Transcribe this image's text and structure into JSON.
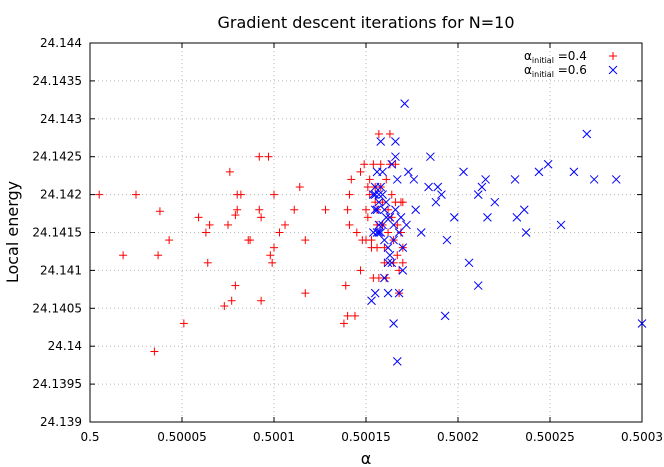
{
  "chart_data": {
    "type": "scatter",
    "title": "Gradient descent iterations for N=10",
    "xlabel": "α",
    "ylabel": "Local energy",
    "xlim": [
      0.5,
      0.5003
    ],
    "ylim": [
      24.139,
      24.144
    ],
    "x_ticks": [
      0.5,
      0.50005,
      0.5001,
      0.50015,
      0.5002,
      0.50025,
      0.5003
    ],
    "x_tick_labels": [
      "0.5",
      "0.50005",
      "0.5001",
      "0.50015",
      "0.5002",
      "0.50025",
      "0.5003"
    ],
    "y_ticks": [
      24.139,
      24.1395,
      24.14,
      24.1405,
      24.141,
      24.1415,
      24.142,
      24.1425,
      24.143,
      24.1435,
      24.144
    ],
    "y_tick_labels": [
      "24.139",
      "24.1395",
      "24.14",
      "24.1405",
      "24.141",
      "24.1415",
      "24.142",
      "24.1425",
      "24.143",
      "24.1435",
      "24.144"
    ],
    "grid": true,
    "legend_position": "top-right",
    "series": [
      {
        "label_main": "α",
        "label_sub": "initial",
        "label_rest": "=0.4",
        "marker": "plus",
        "color": "#ff0000",
        "points": [
          [
            0.500005,
            24.142
          ],
          [
            0.500025,
            24.142
          ],
          [
            0.500018,
            24.1412
          ],
          [
            0.500037,
            24.1412
          ],
          [
            0.500038,
            24.14178
          ],
          [
            0.500035,
            24.13993
          ],
          [
            0.500043,
            24.1414
          ],
          [
            0.500051,
            24.1403
          ],
          [
            0.500059,
            24.1417
          ],
          [
            0.500063,
            24.1415
          ],
          [
            0.500064,
            24.1411
          ],
          [
            0.500065,
            24.1416
          ],
          [
            0.500073,
            24.14053
          ],
          [
            0.500075,
            24.1416
          ],
          [
            0.500076,
            24.1423
          ],
          [
            0.500077,
            24.1406
          ],
          [
            0.500079,
            24.1408
          ],
          [
            0.500079,
            24.14173
          ],
          [
            0.50008,
            24.1418
          ],
          [
            0.50008,
            24.142
          ],
          [
            0.500082,
            24.142
          ],
          [
            0.500086,
            24.1414
          ],
          [
            0.500087,
            24.1414
          ],
          [
            0.500092,
            24.1418
          ],
          [
            0.500092,
            24.1425
          ],
          [
            0.500093,
            24.1417
          ],
          [
            0.500093,
            24.1406
          ],
          [
            0.500097,
            24.1425
          ],
          [
            0.500098,
            24.1412
          ],
          [
            0.500099,
            24.1411
          ],
          [
            0.5001,
            24.142
          ],
          [
            0.5001,
            24.1413
          ],
          [
            0.500103,
            24.1415
          ],
          [
            0.500106,
            24.1416
          ],
          [
            0.500111,
            24.1418
          ],
          [
            0.500114,
            24.1421
          ],
          [
            0.500117,
            24.1407
          ],
          [
            0.500117,
            24.1414
          ],
          [
            0.500128,
            24.1418
          ],
          [
            0.500138,
            24.1403
          ],
          [
            0.500139,
            24.1408
          ],
          [
            0.50014,
            24.1404
          ],
          [
            0.50014,
            24.1418
          ],
          [
            0.500141,
            24.1416
          ],
          [
            0.500141,
            24.142
          ],
          [
            0.500142,
            24.1422
          ],
          [
            0.500144,
            24.1404
          ],
          [
            0.500145,
            24.1415
          ],
          [
            0.500147,
            24.1423
          ],
          [
            0.500147,
            24.141
          ],
          [
            0.500148,
            24.1414
          ],
          [
            0.500149,
            24.1424
          ],
          [
            0.50015,
            24.1414
          ],
          [
            0.50015,
            24.1418
          ],
          [
            0.500151,
            24.1421
          ],
          [
            0.500151,
            24.1417
          ],
          [
            0.500152,
            24.1422
          ],
          [
            0.500152,
            24.142
          ],
          [
            0.500153,
            24.1414
          ],
          [
            0.500153,
            24.1413
          ],
          [
            0.500154,
            24.1409
          ],
          [
            0.500154,
            24.1424
          ],
          [
            0.500155,
            24.1421
          ],
          [
            0.500155,
            24.1419
          ],
          [
            0.500156,
            24.1418
          ],
          [
            0.500156,
            24.1416
          ],
          [
            0.500156,
            24.1413
          ],
          [
            0.500157,
            24.1409
          ],
          [
            0.500157,
            24.1428
          ],
          [
            0.500158,
            24.1424
          ],
          [
            0.500158,
            24.1421
          ],
          [
            0.500159,
            24.1419
          ],
          [
            0.500159,
            24.1416
          ],
          [
            0.50016,
            24.1413
          ],
          [
            0.50016,
            24.1411
          ],
          [
            0.500161,
            24.1409
          ],
          [
            0.500161,
            24.1422
          ],
          [
            0.500162,
            24.1418
          ],
          [
            0.500162,
            24.1415
          ],
          [
            0.500163,
            24.1428
          ],
          [
            0.500163,
            24.1424
          ],
          [
            0.500164,
            24.142
          ],
          [
            0.500164,
            24.1417
          ],
          [
            0.500165,
            24.1414
          ],
          [
            0.500165,
            24.1411
          ],
          [
            0.500166,
            24.1424
          ],
          [
            0.500166,
            24.1419
          ],
          [
            0.500167,
            24.1416
          ],
          [
            0.500167,
            24.1412
          ],
          [
            0.500168,
            24.141
          ],
          [
            0.500168,
            24.1407
          ],
          [
            0.500169,
            24.1419
          ],
          [
            0.500169,
            24.1415
          ],
          [
            0.50017,
            24.1413
          ],
          [
            0.50017,
            24.1411
          ],
          [
            0.50017,
            24.1419
          ]
        ]
      },
      {
        "label_main": "α",
        "label_sub": "initial",
        "label_rest": "=0.6",
        "marker": "cross",
        "color": "#0000ff",
        "points": [
          [
            0.5003,
            24.1403
          ],
          [
            0.500286,
            24.1422
          ],
          [
            0.500274,
            24.1422
          ],
          [
            0.50027,
            24.1428
          ],
          [
            0.500263,
            24.1423
          ],
          [
            0.500256,
            24.1416
          ],
          [
            0.500249,
            24.1424
          ],
          [
            0.500244,
            24.1423
          ],
          [
            0.500237,
            24.1415
          ],
          [
            0.500236,
            24.1418
          ],
          [
            0.500232,
            24.1417
          ],
          [
            0.500231,
            24.1422
          ],
          [
            0.50022,
            24.1419
          ],
          [
            0.500216,
            24.1417
          ],
          [
            0.500215,
            24.1422
          ],
          [
            0.500213,
            24.1421
          ],
          [
            0.500211,
            24.142
          ],
          [
            0.500211,
            24.1408
          ],
          [
            0.500206,
            24.1411
          ],
          [
            0.500203,
            24.1423
          ],
          [
            0.500198,
            24.1417
          ],
          [
            0.500194,
            24.1414
          ],
          [
            0.500193,
            24.1404
          ],
          [
            0.500191,
            24.142
          ],
          [
            0.500189,
            24.1421
          ],
          [
            0.500188,
            24.1419
          ],
          [
            0.500185,
            24.1425
          ],
          [
            0.500184,
            24.1421
          ],
          [
            0.50018,
            24.1415
          ],
          [
            0.500177,
            24.1418
          ],
          [
            0.500176,
            24.1422
          ],
          [
            0.500173,
            24.1423
          ],
          [
            0.500172,
            24.1416
          ],
          [
            0.500171,
            24.1432
          ],
          [
            0.50017,
            24.1413
          ],
          [
            0.50017,
            24.141
          ],
          [
            0.500169,
            24.1417
          ],
          [
            0.500168,
            24.1415
          ],
          [
            0.500168,
            24.1407
          ],
          [
            0.500167,
            24.1422
          ],
          [
            0.500167,
            24.1398
          ],
          [
            0.500166,
            24.1425
          ],
          [
            0.500166,
            24.1418
          ],
          [
            0.500166,
            24.1427
          ],
          [
            0.500165,
            24.1416
          ],
          [
            0.500165,
            24.1414
          ],
          [
            0.500165,
            24.1403
          ],
          [
            0.500164,
            24.1411
          ],
          [
            0.500164,
            24.1424
          ],
          [
            0.500163,
            24.1417
          ],
          [
            0.500163,
            24.1412
          ],
          [
            0.500162,
            24.1411
          ],
          [
            0.500162,
            24.1413
          ],
          [
            0.500162,
            24.1407
          ],
          [
            0.500161,
            24.1419
          ],
          [
            0.500161,
            24.1417
          ],
          [
            0.50016,
            24.1418
          ],
          [
            0.50016,
            24.1414
          ],
          [
            0.50016,
            24.1409
          ],
          [
            0.500159,
            24.1416
          ],
          [
            0.500159,
            24.142
          ],
          [
            0.500159,
            24.1423
          ],
          [
            0.500158,
            24.1421
          ],
          [
            0.500158,
            24.1415
          ],
          [
            0.500158,
            24.1427
          ],
          [
            0.500157,
            24.1419
          ],
          [
            0.500157,
            24.1416
          ],
          [
            0.500157,
            24.142
          ],
          [
            0.500157,
            24.1415
          ],
          [
            0.500156,
            24.1423
          ],
          [
            0.500156,
            24.1418
          ],
          [
            0.500156,
            24.1415
          ],
          [
            0.500155,
            24.1421
          ],
          [
            0.500155,
            24.142
          ],
          [
            0.500155,
            24.1407
          ],
          [
            0.500155,
            24.1418
          ],
          [
            0.500154,
            24.142
          ],
          [
            0.500154,
            24.1415
          ],
          [
            0.500153,
            24.1406
          ]
        ]
      }
    ]
  }
}
